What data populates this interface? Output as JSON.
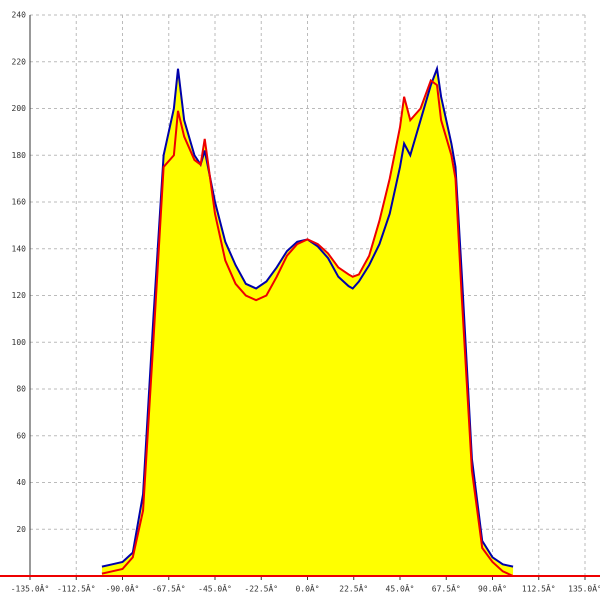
{
  "chart_data": {
    "type": "area-line",
    "x": [
      -100,
      -95,
      -90,
      -85,
      -80,
      -75,
      -70,
      -65,
      -63,
      -60,
      -55,
      -52,
      -50,
      -45,
      -40,
      -35,
      -30,
      -25,
      -20,
      -15,
      -10,
      -5,
      0,
      5,
      10,
      15,
      20,
      22,
      25,
      30,
      35,
      40,
      45,
      47,
      50,
      55,
      60,
      63,
      65,
      70,
      72,
      75,
      80,
      85,
      90,
      95,
      100
    ],
    "series": [
      {
        "color": "#0000aa",
        "fill": "#ffff00",
        "values": [
          4,
          5,
          6,
          10,
          35,
          110,
          180,
          200,
          217,
          195,
          180,
          176,
          182,
          160,
          143,
          133,
          125,
          123,
          126,
          132,
          139,
          143,
          144,
          141,
          136,
          128,
          124,
          123,
          126,
          133,
          142,
          155,
          175,
          185,
          180,
          195,
          210,
          217,
          205,
          185,
          175,
          130,
          50,
          15,
          8,
          5,
          4
        ]
      },
      {
        "color": "#ee0000",
        "fill": "#ffff00",
        "values": [
          1,
          2,
          3,
          8,
          28,
          100,
          175,
          180,
          199,
          188,
          178,
          176,
          187,
          155,
          135,
          125,
          120,
          118,
          120,
          128,
          137,
          142,
          144,
          142,
          138,
          132,
          129,
          128,
          129,
          137,
          152,
          170,
          192,
          205,
          195,
          200,
          212,
          210,
          195,
          180,
          170,
          120,
          45,
          12,
          6,
          2,
          0
        ]
      }
    ],
    "xlim": [
      -135,
      135
    ],
    "xticks": [
      {
        "value": -135,
        "label": "-135.0Â°"
      },
      {
        "value": -112.5,
        "label": "-112.5Â°"
      },
      {
        "value": -90,
        "label": "-90.0Â°"
      },
      {
        "value": -67.5,
        "label": "-67.5Â°"
      },
      {
        "value": -45,
        "label": "-45.0Â°"
      },
      {
        "value": -22.5,
        "label": "-22.5Â°"
      },
      {
        "value": 0,
        "label": "0.0Â°"
      },
      {
        "value": 22.5,
        "label": "22.5Â°"
      },
      {
        "value": 45,
        "label": "45.0Â°"
      },
      {
        "value": 67.5,
        "label": "67.5Â°"
      },
      {
        "value": 90,
        "label": "90.0Â°"
      },
      {
        "value": 112.5,
        "label": "112.5Â°"
      },
      {
        "value": 135,
        "label": "135.0Â°"
      }
    ],
    "ylim": [
      0,
      240
    ],
    "yticks": [
      20,
      40,
      60,
      80,
      100,
      120,
      140,
      160,
      180,
      200,
      220,
      240
    ],
    "grid": true
  }
}
